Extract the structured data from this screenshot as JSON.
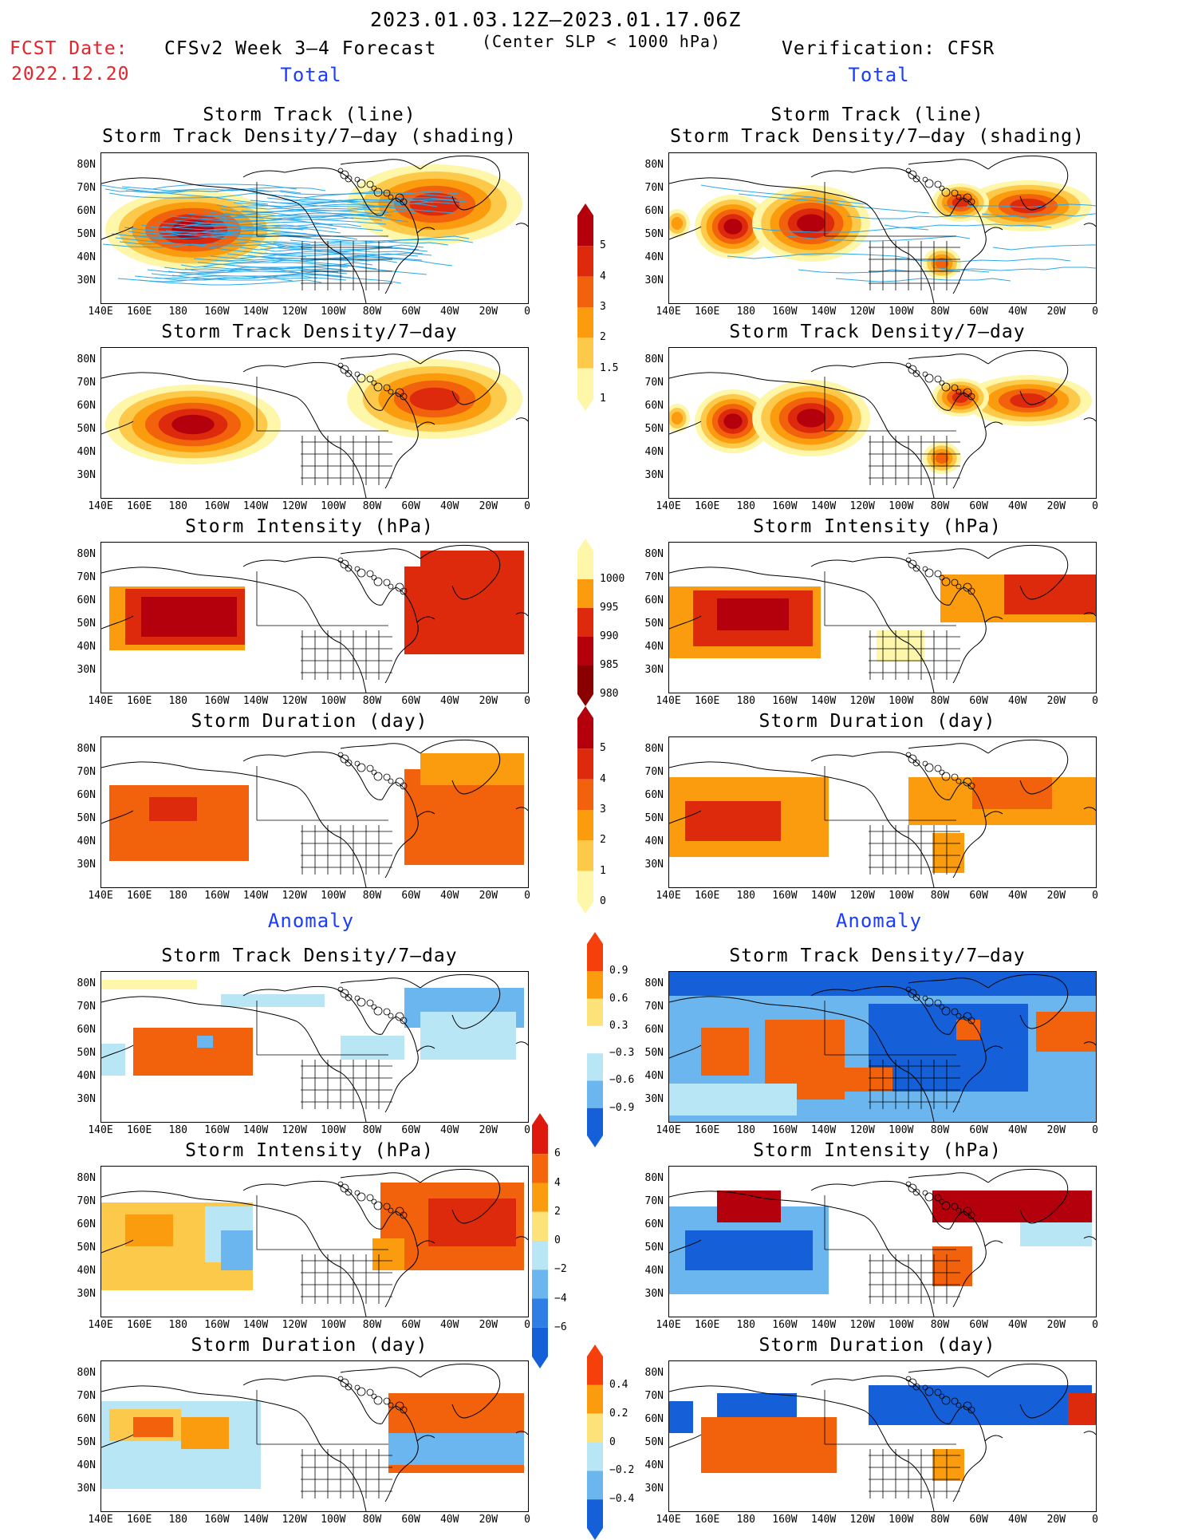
{
  "header": {
    "period": "2023.01.03.12Z–2023.01.17.06Z",
    "fcst_date_label": "FCST Date:",
    "fcst_date": "2022.12.20",
    "forecast_title": "CFSv2 Week 3–4 Forecast",
    "criterion": "(Center SLP < 1000 hPa)",
    "verification": "Verification: CFSR"
  },
  "sections": {
    "total": "Total",
    "anomaly": "Anomaly"
  },
  "panel_titles": {
    "track_line": "Storm Track (line)",
    "track_density_shading": "Storm Track Density/7–day (shading)",
    "track_density": "Storm Track Density/7–day",
    "intensity": "Storm Intensity (hPa)",
    "duration": "Storm Duration (day)"
  },
  "axes": {
    "lat_labels": [
      "80N",
      "70N",
      "60N",
      "50N",
      "40N",
      "30N"
    ],
    "lon_labels": [
      "140E",
      "160E",
      "180",
      "160W",
      "140W",
      "120W",
      "100W",
      "80W",
      "60W",
      "40W",
      "20W",
      "0"
    ]
  },
  "colorbars": {
    "density": {
      "labels": [
        "5",
        "4",
        "3",
        "2",
        "1.5",
        "1"
      ],
      "colors": [
        "#b3000c",
        "#dd2a0d",
        "#f2610c",
        "#fb9b0e",
        "#fdc94b",
        "#fef6a8"
      ]
    },
    "intensity": {
      "labels": [
        "1000",
        "995",
        "990",
        "985",
        "980"
      ],
      "colors": [
        "#fef6a8",
        "#fb9b0e",
        "#dd2a0d",
        "#b3000c",
        "#8a0000"
      ]
    },
    "duration": {
      "labels": [
        "5",
        "4",
        "3",
        "2",
        "1",
        "0"
      ],
      "colors": [
        "#b3000c",
        "#dd2a0d",
        "#f2610c",
        "#fb9b0e",
        "#fdc94b",
        "#fef6a8"
      ]
    },
    "anom_density": {
      "labels": [
        "0.9",
        "0.6",
        "0.3",
        "−0.3",
        "−0.6",
        "−0.9"
      ],
      "colors": [
        "#f5400c",
        "#fb9b0e",
        "#fde27a",
        "#ffffff",
        "#b8e6f5",
        "#6cb6f0",
        "#1560d8"
      ]
    },
    "anom_intensity": {
      "labels": [
        "6",
        "4",
        "2",
        "0",
        "−2",
        "−4",
        "−6"
      ],
      "colors": [
        "#dd1a0d",
        "#f5650c",
        "#fb9b0e",
        "#fde27a",
        "#b8e6f5",
        "#6cb6f0",
        "#2e7ee6",
        "#1560d8"
      ]
    },
    "anom_duration": {
      "labels": [
        "0.4",
        "0.2",
        "0",
        "−0.2",
        "−0.4"
      ],
      "colors": [
        "#f5400c",
        "#fb9b0e",
        "#fde27a",
        "#b8e6f5",
        "#6cb6f0",
        "#1560d8"
      ]
    }
  },
  "colors": {
    "dark_red": "#b3000c",
    "red": "#dd2a0d",
    "orange": "#f2610c",
    "light_orange": "#fb9b0e",
    "yellow": "#fdc94b",
    "pale": "#fef6a8",
    "track_line": "#2ea8e8",
    "pale_blue": "#b8e6f5",
    "mid_blue": "#6cb6f0",
    "blue": "#1560d8"
  }
}
